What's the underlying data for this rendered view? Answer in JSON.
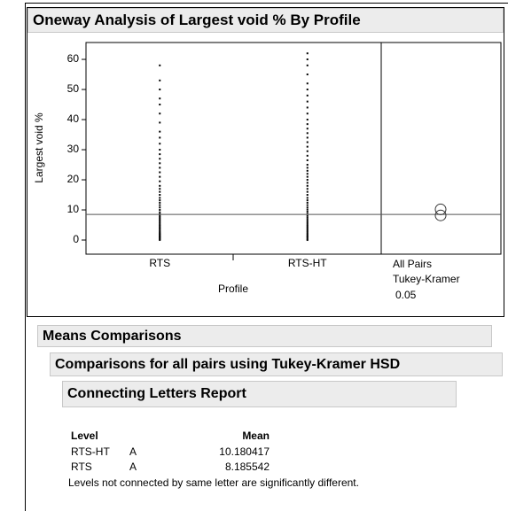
{
  "title": "Oneway Analysis of Largest void % By Profile",
  "chart_data": {
    "type": "strip",
    "ylabel": "Largest void %",
    "xlabel": "Profile",
    "categories": [
      "RTS",
      "RTS-HT"
    ],
    "series": [
      {
        "color": "#000000",
        "values": [
          0,
          0.3,
          0.5,
          0.8,
          1,
          1.2,
          1.5,
          1.8,
          2,
          2.3,
          2.6,
          3,
          3.4,
          3.8,
          4.2,
          4.6,
          5,
          5.5,
          6,
          6.5,
          7,
          7.5,
          8,
          8.6,
          9.2,
          10,
          10.8,
          11.6,
          12.4,
          13.2,
          14,
          15,
          16,
          17,
          18,
          19.5,
          21,
          22.5,
          24,
          25.5,
          27,
          28.5,
          30,
          32,
          34,
          36,
          39,
          42,
          45,
          47,
          50,
          53,
          58
        ]
      },
      {
        "color": "#000000",
        "values": [
          0,
          0.4,
          0.8,
          1.2,
          1.6,
          2,
          2.5,
          3,
          3.5,
          4,
          4.5,
          5,
          5.6,
          6.2,
          6.8,
          7.4,
          8,
          8.7,
          9.4,
          10.1,
          10.8,
          11.6,
          12.4,
          13.2,
          14,
          15,
          16,
          17,
          18,
          19,
          20,
          21,
          22,
          23,
          24,
          25,
          26.5,
          28,
          29.5,
          31,
          32.5,
          34,
          35.5,
          37,
          38.5,
          40,
          42,
          44,
          46,
          48,
          50,
          52,
          55,
          58,
          60,
          62
        ]
      }
    ],
    "mean_line": 8.5,
    "ylim": [
      -4.7,
      65.6
    ],
    "yticks": [
      0,
      10,
      20,
      30,
      40,
      50,
      60
    ],
    "comparison_method": [
      "All Pairs",
      "Tukey-Kramer"
    ],
    "alpha": 0.05
  },
  "report": {
    "title": "Means Comparisons",
    "subtitle": "Comparisons for all pairs using Tukey-Kramer HSD",
    "table_title": "Connecting Letters Report",
    "columns": [
      "Level",
      "Mean"
    ],
    "rows": [
      [
        "RTS-HT",
        "A",
        10.180417
      ],
      [
        "RTS",
        "A",
        8.185542
      ]
    ],
    "footnote": "Levels not connected by same letter are significantly different."
  }
}
